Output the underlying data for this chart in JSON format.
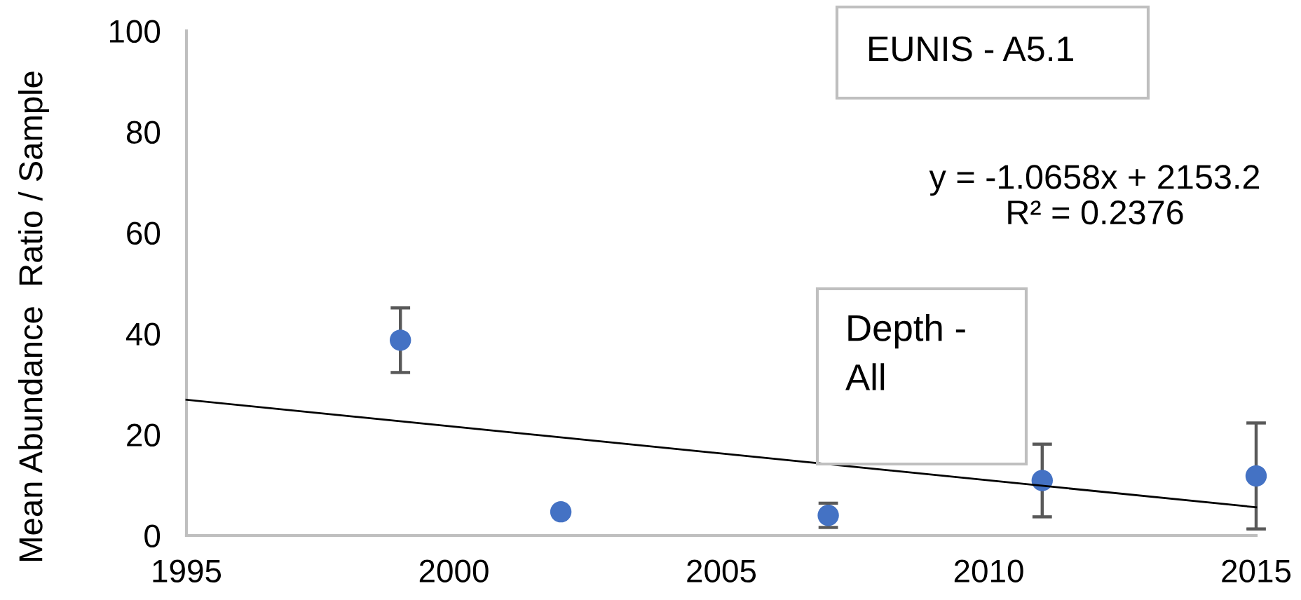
{
  "chart_data": {
    "type": "scatter",
    "ylabel": "Mean Abundance  Ratio / Sample",
    "xlim": [
      1995,
      2015
    ],
    "xticks": [
      1995,
      2000,
      2005,
      2010,
      2015
    ],
    "ylim": [
      0,
      100
    ],
    "yticks": [
      0,
      20,
      40,
      60,
      80,
      100
    ],
    "annotations": [
      "EUNIS - A5.1",
      "Depth -\nAll",
      "y = -1.0658x + 2153.2\nR² = 0.2376"
    ],
    "series": [
      {
        "x": [
          1999,
          2002,
          2007,
          2011,
          2015
        ],
        "values": [
          38.7,
          4.7,
          4.0,
          10.9,
          11.8
        ],
        "errors": [
          6.4,
          null,
          2.4,
          7.2,
          10.5
        ],
        "color": "#4472c4",
        "marker": "circle"
      },
      {
        "type": "line",
        "x": [
          1995,
          2015
        ],
        "values": [
          26.9,
          5.6
        ],
        "color": "#000000",
        "line_style": "solid"
      }
    ]
  }
}
